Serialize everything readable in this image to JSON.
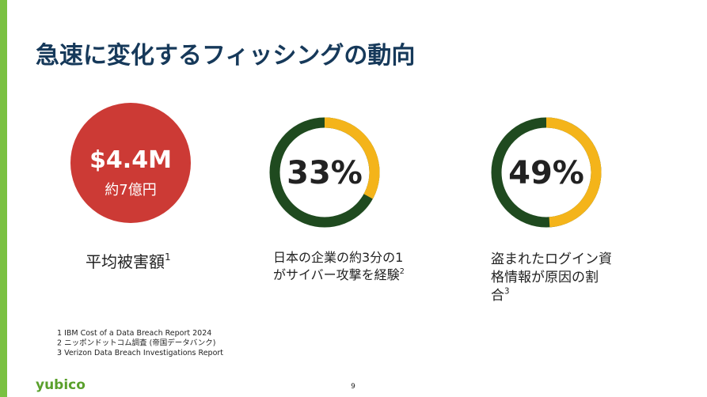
{
  "title": "急速に変化するフィッシングの動向",
  "stats": [
    {
      "value_label": "$4.4M",
      "sub": "約7億円",
      "caption_lines": [
        "平均被害額"
      ],
      "sup": "1"
    },
    {
      "value": 33,
      "value_label": "33%",
      "caption_lines": [
        "日本の企業の約3分の1",
        "がサイバー攻撃を経験"
      ],
      "sup": "2"
    },
    {
      "value": 49,
      "value_label": "49%",
      "caption_lines": [
        "盗まれたログイン資",
        "格情報が原因の割",
        "合"
      ],
      "sup": "3"
    }
  ],
  "footnotes": [
    "1 IBM Cost of a Data Breach Report 2024",
    "2 ニッポンドットコム調査 (帝国データバンク)",
    "3 Verizon Data Breach Investigations Report"
  ],
  "logo": "yubico",
  "page": "9"
}
